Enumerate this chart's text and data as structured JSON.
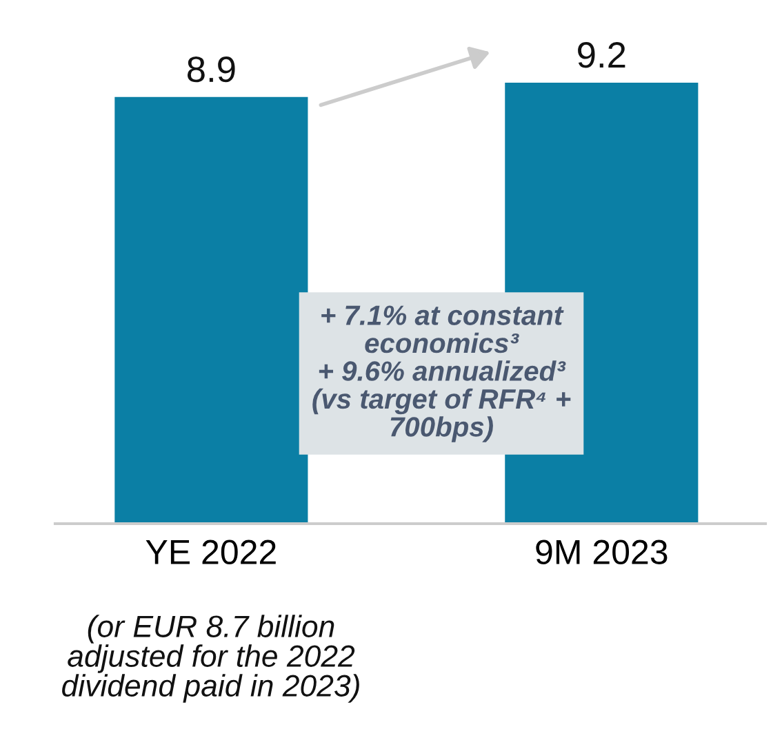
{
  "chart_data": {
    "type": "bar",
    "categories": [
      "YE 2022",
      "9M 2023"
    ],
    "values": [
      8.9,
      9.2
    ],
    "color": "#0b7fa5",
    "data_labels": true,
    "tick_labels": "x",
    "grid": false,
    "legend": false,
    "annotations": [
      "+ 7.1% at constant\neconomics³\n+ 9.6% annualized³\n(vs target of RFR⁴ +\n700bps)",
      "(or EUR 8.7 billion\nadjusted for the 2022\ndividend paid in 2023)"
    ]
  }
}
